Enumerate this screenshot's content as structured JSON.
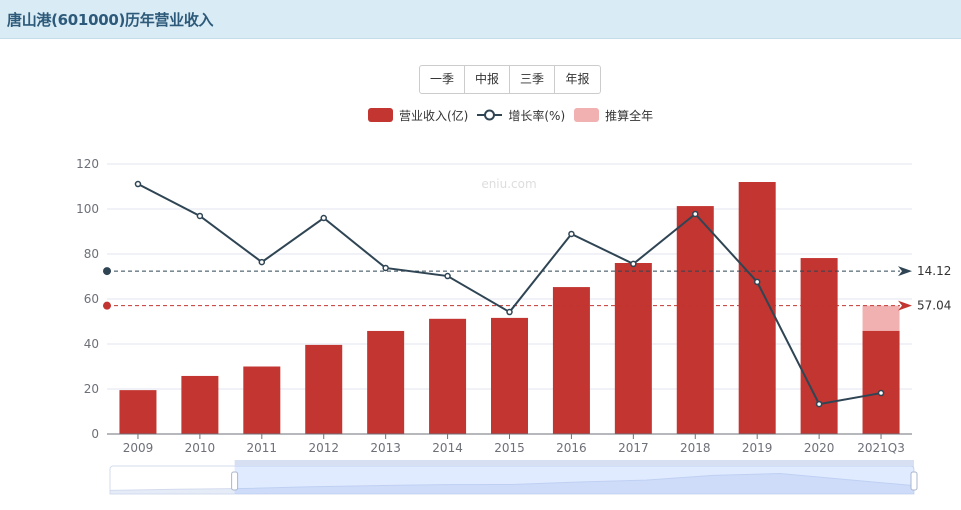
{
  "header": {
    "title": "唐山港(601000)历年营业收入"
  },
  "period_buttons": [
    {
      "label": "一季"
    },
    {
      "label": "中报"
    },
    {
      "label": "三季"
    },
    {
      "label": "年报"
    }
  ],
  "legend": [
    {
      "label": "营业收入(亿)",
      "color": "#c23531"
    },
    {
      "label": "增长率(%)",
      "color": "#2f4554"
    },
    {
      "label": "推算全年",
      "color": "#f2b1b1"
    }
  ],
  "watermark": "eniu.com",
  "colors": {
    "revenue_bar": "#c23531",
    "projected_bar": "#f2b1b1",
    "growth_line": "#2f4554",
    "grid": "#e0e6f1",
    "axis": "#6e7079"
  },
  "chart_data": {
    "type": "bar",
    "title": "唐山港(601000)历年营业收入",
    "xlabel": "",
    "ylabel": "",
    "ylim": [
      0,
      120
    ],
    "yticks": [
      0,
      20,
      40,
      60,
      80,
      100,
      120
    ],
    "grid": true,
    "legend_position": "top",
    "categories": [
      "2009",
      "2010",
      "2011",
      "2012",
      "2013",
      "2014",
      "2015",
      "2016",
      "2017",
      "2018",
      "2019",
      "2020",
      "2021Q3"
    ],
    "series": [
      {
        "name": "营业收入(亿)",
        "type": "bar",
        "values": [
          19.5,
          25.8,
          30.0,
          39.6,
          45.8,
          51.2,
          51.6,
          65.3,
          76.0,
          101.3,
          112.0,
          78.2,
          45.8
        ]
      },
      {
        "name": "推算全年",
        "type": "bar-stack",
        "values": [
          null,
          null,
          null,
          null,
          null,
          null,
          null,
          null,
          null,
          null,
          null,
          null,
          57.04
        ]
      },
      {
        "name": "增长率(%)",
        "type": "line",
        "plot_values": [
          111.1,
          96.9,
          76.4,
          96.0,
          73.8,
          70.2,
          54.2,
          88.9,
          75.6,
          97.8,
          67.6,
          13.3,
          18.2
        ]
      }
    ],
    "mark_lines": [
      {
        "series": "增长率(%)",
        "label": "14.12",
        "plot_y": 72.4,
        "color": "#2f4554"
      },
      {
        "series": "营业收入(亿)",
        "label": "57.04",
        "plot_y": 57.04,
        "color": "#c23531"
      }
    ]
  },
  "datazoom": {
    "start_pct": 15.5,
    "end_pct": 100
  }
}
